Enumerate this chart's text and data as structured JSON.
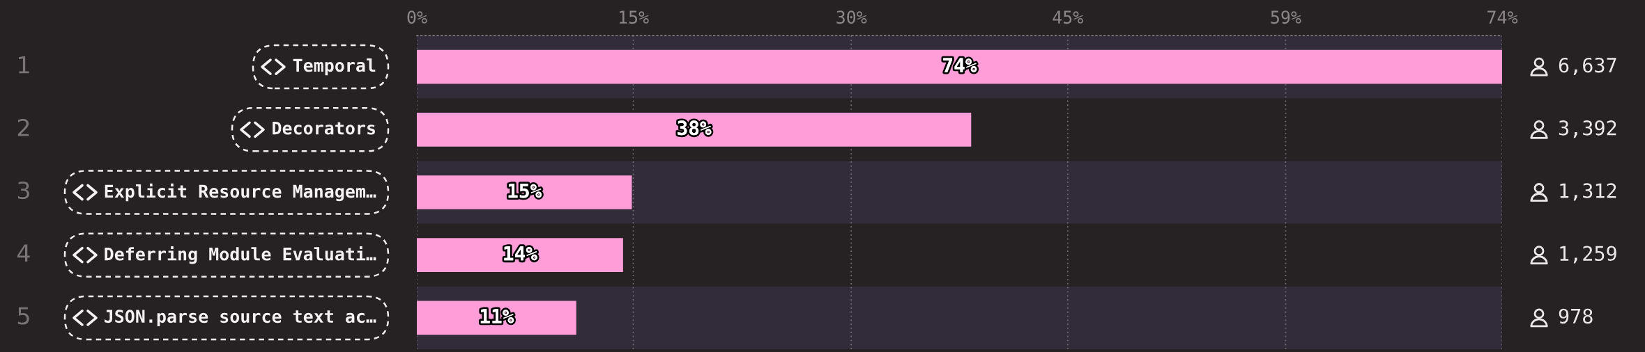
{
  "chart_data": {
    "type": "bar",
    "orientation": "horizontal",
    "categories": [
      "Temporal",
      "Decorators",
      "Explicit Resource Managem…",
      "Deferring Module Evaluati…",
      "JSON.parse source text ac…"
    ],
    "values": [
      74.2,
      37.9,
      14.7,
      14.1,
      10.9
    ],
    "value_labels": [
      "74%",
      "38%",
      "15%",
      "14%",
      "11%"
    ],
    "color": "#fe9dd7",
    "xlim": [
      0,
      74.2
    ],
    "xticks": [
      {
        "value": 0,
        "label": "0%"
      },
      {
        "value": 14.8,
        "label": "15%"
      },
      {
        "value": 29.7,
        "label": "30%"
      },
      {
        "value": 44.5,
        "label": "45%"
      },
      {
        "value": 59.4,
        "label": "59%"
      },
      {
        "value": 74.2,
        "label": "74%"
      }
    ],
    "grid": "x",
    "annotations": [
      "1",
      "2",
      "3",
      "4",
      "5",
      "6,637",
      "3,392",
      "1,312",
      "1,259",
      "978"
    ]
  }
}
